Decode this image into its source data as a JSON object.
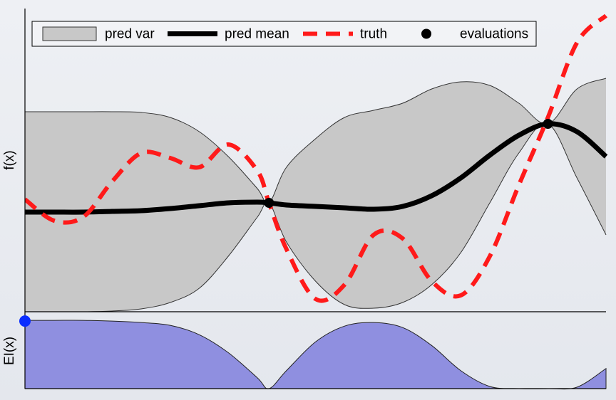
{
  "chart_data": [
    {
      "type": "line",
      "ylabel": "f(x)",
      "legend": "top",
      "x": [
        0,
        0.05,
        0.1,
        0.15,
        0.2,
        0.25,
        0.3,
        0.35,
        0.4,
        0.42,
        0.45,
        0.5,
        0.55,
        0.6,
        0.65,
        0.7,
        0.75,
        0.8,
        0.85,
        0.9,
        0.95,
        1
      ],
      "xlim": [
        0,
        1
      ],
      "ylim": [
        0,
        426
      ],
      "series": [
        {
          "name": "pred var",
          "color": "#c8c8c8",
          "upper": [
            281,
            281,
            281,
            281,
            280,
            273,
            253,
            218,
            173,
            153,
            203,
            243,
            273,
            283,
            293,
            313,
            323,
            318,
            293,
            264,
            313,
            328
          ],
          "lower": [
            0,
            0,
            0,
            1,
            4,
            13,
            33,
            78,
            133,
            153,
            98,
            43,
            10,
            5,
            13,
            38,
            83,
            153,
            223,
            264,
            188,
            108
          ]
        },
        {
          "name": "pred mean",
          "color": "#000000",
          "linestyle": "solid",
          "values": [
            140,
            140,
            140,
            141,
            142,
            145,
            149,
            153,
            154,
            153,
            150,
            148,
            146,
            144,
            148,
            163,
            188,
            220,
            248,
            264,
            253,
            218
          ]
        },
        {
          "name": "truth",
          "color": "#ff1a1a",
          "linestyle": "dashed",
          "values": [
            158,
            128,
            133,
            183,
            223,
            216,
            203,
            235,
            198,
            153,
            88,
            18,
            38,
            108,
            103,
            43,
            23,
            78,
            178,
            273,
            378,
            416
          ]
        },
        {
          "name": "evaluations",
          "color": "#000000",
          "x": [
            0.42,
            0.9
          ],
          "values": [
            153,
            264
          ]
        }
      ]
    },
    {
      "type": "area",
      "ylabel": "EI(x)",
      "color": "#8f8fe0",
      "x": [
        0,
        0.05,
        0.1,
        0.15,
        0.2,
        0.25,
        0.3,
        0.35,
        0.4,
        0.42,
        0.45,
        0.5,
        0.55,
        0.6,
        0.65,
        0.7,
        0.75,
        0.8,
        0.85,
        0.9,
        0.95,
        1
      ],
      "values": [
        95,
        95,
        95,
        94,
        92,
        88,
        75,
        50,
        15,
        0,
        25,
        65,
        87,
        92,
        85,
        60,
        25,
        3,
        0,
        0,
        2,
        28
      ],
      "xlim": [
        0,
        1
      ],
      "ylim": [
        0,
        105
      ],
      "selected": {
        "x": 0,
        "y": 94,
        "color": "#0a2dff"
      }
    }
  ]
}
